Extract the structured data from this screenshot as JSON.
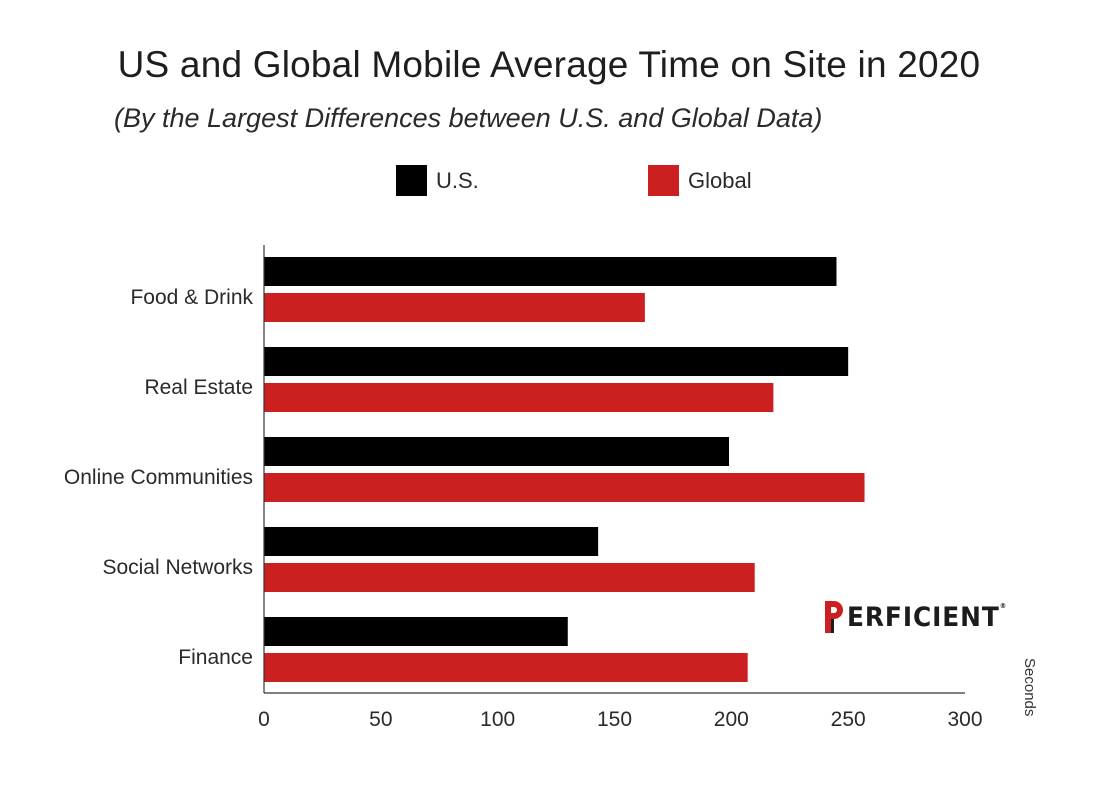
{
  "chart_data": {
    "type": "bar",
    "orientation": "horizontal",
    "title": "US and Global Mobile Average Time on Site in 2020",
    "subtitle": "(By the Largest Differences between U.S. and Global Data)",
    "categories": [
      "Food & Drink",
      "Real Estate",
      "Online Communities",
      "Social Networks",
      "Finance"
    ],
    "series": [
      {
        "name": "U.S.",
        "color": "#000000",
        "values": [
          245,
          250,
          199,
          143,
          130
        ]
      },
      {
        "name": "Global",
        "color": "#cc2020",
        "values": [
          163,
          218,
          257,
          210,
          207
        ]
      }
    ],
    "xlim": [
      0,
      300
    ],
    "xticks": [
      "0",
      "50",
      "100",
      "150",
      "200",
      "250",
      "300"
    ],
    "xlabel": "Seconds",
    "ylabel": "",
    "grid": false,
    "legend": "top-center"
  },
  "logo": {
    "mark": "P",
    "text": "ERFICIENT",
    "registered": "®",
    "accent": "#cc2020"
  }
}
